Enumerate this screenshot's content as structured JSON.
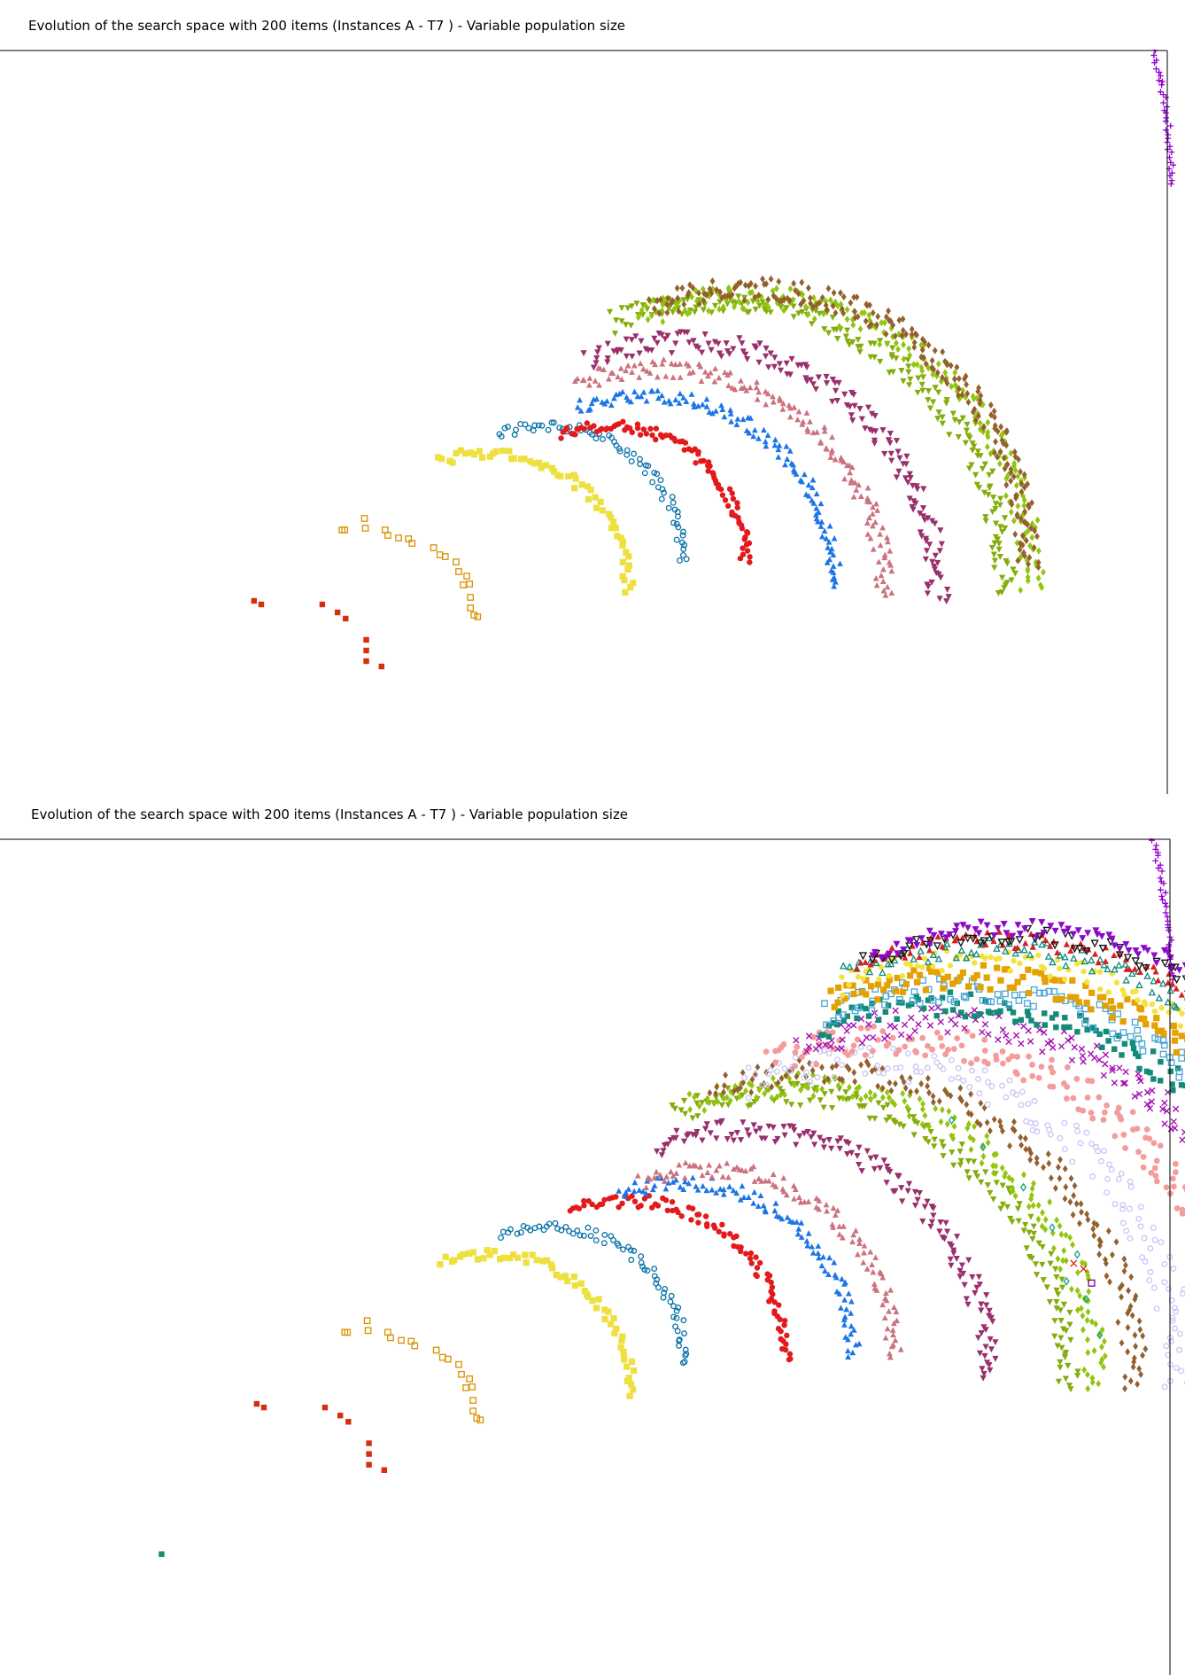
{
  "chart_data": [
    {
      "type": "scatter",
      "title": "Evolution of the search space with 200 items (Instances A - T7 ) - Variable population size",
      "xlabel": "",
      "ylabel": "",
      "grid": false,
      "legend": "none",
      "xlim": [
        0,
        1320
      ],
      "ylim": [
        0,
        840
      ],
      "series": [
        {
          "marker": "plus",
          "color": "#9400d3",
          "front": {
            "cx": 680,
            "cy": 685,
            "r": 625,
            "start": 90,
            "end": 0
          },
          "n": 220,
          "jitter": 3,
          "size": 3.4
        },
        {
          "marker": "square",
          "color": "#d62f0c",
          "points": [
            [
              283,
              218
            ],
            [
              291,
              214
            ],
            [
              359,
              214
            ],
            [
              376,
              205
            ],
            [
              385,
              198
            ],
            [
              408,
              174
            ],
            [
              408,
              162
            ],
            [
              408,
              150
            ],
            [
              425,
              144
            ]
          ],
          "size": 3.2
        },
        {
          "marker": "square-open",
          "color": "#d89100",
          "points": [
            [
              381,
              298
            ],
            [
              384,
              298
            ],
            [
              406,
              311
            ],
            [
              407,
              300
            ],
            [
              429,
              298
            ],
            [
              432,
              292
            ],
            [
              444,
              289
            ],
            [
              455,
              288
            ],
            [
              459,
              283
            ],
            [
              483,
              278
            ],
            [
              490,
              270
            ],
            [
              496,
              268
            ],
            [
              508,
              262
            ],
            [
              511,
              251
            ],
            [
              520,
              246
            ],
            [
              523,
              237
            ],
            [
              516,
              236
            ],
            [
              524,
              222
            ],
            [
              524,
              210
            ],
            [
              528,
              202
            ],
            [
              532,
              200
            ]
          ],
          "size": 3.2
        },
        {
          "marker": "square",
          "color": "#ede03f",
          "front": {
            "cx": 545,
            "cy": 230,
            "r": 155,
            "start": 112,
            "end": -2
          },
          "n": 60,
          "jitter": 6,
          "size": 3.6
        },
        {
          "marker": "circle-open",
          "color": "#0b72a9",
          "front": {
            "cx": 610,
            "cy": 265,
            "r": 150,
            "start": 112,
            "end": -2
          },
          "n": 70,
          "jitter": 6,
          "size": 2.8
        },
        {
          "marker": "circle",
          "color": "#e31a1c",
          "front": {
            "cx": 680,
            "cy": 265,
            "r": 150,
            "start": 112,
            "end": -2
          },
          "n": 95,
          "jitter": 6,
          "size": 3.2
        },
        {
          "marker": "triangle",
          "color": "#1c75e7",
          "front": {
            "cx": 720,
            "cy": 240,
            "r": 210,
            "start": 112,
            "end": -2
          },
          "n": 120,
          "jitter": 8,
          "size": 3.4
        },
        {
          "marker": "triangle",
          "color": "#cc727e",
          "front": {
            "cx": 735,
            "cy": 230,
            "r": 250,
            "start": 112,
            "end": -2
          },
          "n": 150,
          "jitter": 10,
          "size": 3.4
        },
        {
          "marker": "triangle-down",
          "color": "#992f6c",
          "front": {
            "cx": 760,
            "cy": 225,
            "r": 285,
            "start": 112,
            "end": -2
          },
          "n": 170,
          "jitter": 12,
          "size": 3.6
        },
        {
          "marker": "triangle-down",
          "color": "#83ad0c",
          "front": {
            "cx": 800,
            "cy": 235,
            "r": 320,
            "start": 112,
            "end": -2
          },
          "n": 190,
          "jitter": 13,
          "size": 3.6
        },
        {
          "marker": "diamond",
          "color": "#92c50d",
          "front": {
            "cx": 830,
            "cy": 240,
            "r": 320,
            "start": 112,
            "end": -2
          },
          "n": 210,
          "jitter": 14,
          "size": 3.4
        },
        {
          "marker": "diamond",
          "color": "#93602d",
          "front": {
            "cx": 840,
            "cy": 265,
            "r": 305,
            "start": 112,
            "end": -2
          },
          "n": 220,
          "jitter": 13,
          "size": 3.4
        }
      ]
    },
    {
      "type": "scatter",
      "title": "Evolution of the search space with 200 items (Instances A - T7 ) - Variable population size",
      "xlabel": "",
      "ylabel": "",
      "grid": false,
      "legend": "none",
      "xlim": [
        0,
        1320
      ],
      "ylim": [
        0,
        935
      ],
      "series": [
        {
          "marker": "plus",
          "color": "#9400d3",
          "front": {
            "cx": 680,
            "cy": 770,
            "r": 625,
            "start": 90,
            "end": 0
          },
          "n": 220,
          "jitter": 3,
          "size": 3.4
        },
        {
          "marker": "square",
          "color": "#128b77",
          "points": [
            [
              180,
              135
            ]
          ],
          "size": 3.2
        },
        {
          "marker": "square",
          "color": "#d62f0c",
          "points": [
            [
              286,
              303
            ],
            [
              294,
              299
            ],
            [
              362,
              299
            ],
            [
              379,
              290
            ],
            [
              388,
              283
            ],
            [
              411,
              259
            ],
            [
              411,
              247
            ],
            [
              411,
              235
            ],
            [
              428,
              229
            ]
          ],
          "size": 3.2
        },
        {
          "marker": "square-open",
          "color": "#d89100",
          "points": [
            [
              384,
              383
            ],
            [
              387,
              383
            ],
            [
              409,
              396
            ],
            [
              410,
              385
            ],
            [
              432,
              383
            ],
            [
              435,
              377
            ],
            [
              447,
              374
            ],
            [
              458,
              373
            ],
            [
              462,
              368
            ],
            [
              486,
              363
            ],
            [
              493,
              355
            ],
            [
              499,
              353
            ],
            [
              511,
              347
            ],
            [
              514,
              336
            ],
            [
              523,
              331
            ],
            [
              526,
              322
            ],
            [
              519,
              321
            ],
            [
              527,
              307
            ],
            [
              527,
              295
            ],
            [
              531,
              287
            ],
            [
              535,
              285
            ]
          ],
          "size": 3.2
        },
        {
          "marker": "square",
          "color": "#ede03f",
          "front": {
            "cx": 548,
            "cy": 315,
            "r": 155,
            "start": 112,
            "end": -2
          },
          "n": 60,
          "jitter": 6,
          "size": 3.6
        },
        {
          "marker": "circle-open",
          "color": "#0b72a9",
          "front": {
            "cx": 613,
            "cy": 350,
            "r": 150,
            "start": 112,
            "end": -2
          },
          "n": 70,
          "jitter": 6,
          "size": 2.8
        },
        {
          "marker": "circle",
          "color": "#e31a1c",
          "front": {
            "cx": 700,
            "cy": 355,
            "r": 175,
            "start": 112,
            "end": -2
          },
          "n": 95,
          "jitter": 7,
          "size": 3.2
        },
        {
          "marker": "triangle",
          "color": "#1c75e7",
          "front": {
            "cx": 760,
            "cy": 360,
            "r": 190,
            "start": 112,
            "end": -2
          },
          "n": 100,
          "jitter": 8,
          "size": 3.4
        },
        {
          "marker": "triangle",
          "color": "#cc727e",
          "front": {
            "cx": 790,
            "cy": 360,
            "r": 205,
            "start": 112,
            "end": -2
          },
          "n": 110,
          "jitter": 9,
          "size": 3.4
        },
        {
          "marker": "triangle-down",
          "color": "#992f6c",
          "front": {
            "cx": 830,
            "cy": 340,
            "r": 270,
            "start": 112,
            "end": -2
          },
          "n": 150,
          "jitter": 12,
          "size": 3.6
        },
        {
          "marker": "triangle-down",
          "color": "#83ad0c",
          "front": {
            "cx": 870,
            "cy": 330,
            "r": 320,
            "start": 112,
            "end": -2
          },
          "n": 170,
          "jitter": 13,
          "size": 3.6
        },
        {
          "marker": "diamond",
          "color": "#92c50d",
          "front": {
            "cx": 890,
            "cy": 330,
            "r": 330,
            "start": 112,
            "end": -2
          },
          "n": 170,
          "jitter": 14,
          "size": 3.4
        },
        {
          "marker": "diamond",
          "color": "#93602d",
          "front": {
            "cx": 920,
            "cy": 330,
            "r": 345,
            "start": 112,
            "end": -2
          },
          "n": 170,
          "jitter": 14,
          "size": 3.4
        },
        {
          "marker": "circle-open",
          "color": "#c9c6f5",
          "front": {
            "cx": 960,
            "cy": 330,
            "r": 355,
            "start": 112,
            "end": -2
          },
          "n": 150,
          "jitter": 18,
          "size": 2.8
        },
        {
          "marker": "circle",
          "color": "#f49c9c",
          "front": {
            "cx": 1000,
            "cy": 330,
            "r": 380,
            "start": 112,
            "end": -2
          },
          "n": 190,
          "jitter": 18,
          "size": 3.4
        },
        {
          "marker": "x",
          "color": "#9f07ae",
          "front": {
            "cx": 1040,
            "cy": 330,
            "r": 400,
            "start": 112,
            "end": -2
          },
          "n": 200,
          "jitter": 16,
          "size": 3.2
        },
        {
          "marker": "square",
          "color": "#128b77",
          "front": {
            "cx": 1060,
            "cy": 345,
            "r": 405,
            "start": 112,
            "end": -2
          },
          "n": 170,
          "jitter": 14,
          "size": 3.2
        },
        {
          "marker": "square-open",
          "color": "#47a5d4",
          "front": {
            "cx": 1070,
            "cy": 355,
            "r": 410,
            "start": 112,
            "end": -2
          },
          "n": 170,
          "jitter": 14,
          "size": 3.2
        },
        {
          "marker": "square",
          "color": "#e4a100",
          "front": {
            "cx": 1080,
            "cy": 365,
            "r": 415,
            "start": 112,
            "end": -2
          },
          "n": 190,
          "jitter": 14,
          "size": 3.6
        },
        {
          "marker": "circle",
          "color": "#f6e23e",
          "front": {
            "cx": 1090,
            "cy": 380,
            "r": 420,
            "start": 112,
            "end": -2
          },
          "n": 150,
          "jitter": 12,
          "size": 3.2
        },
        {
          "marker": "triangle-open",
          "color": "#0e8c7a",
          "front": {
            "cx": 1100,
            "cy": 390,
            "r": 422,
            "start": 112,
            "end": -2
          },
          "n": 150,
          "jitter": 11,
          "size": 3.2
        },
        {
          "marker": "triangle",
          "color": "#d91f1f",
          "front": {
            "cx": 1110,
            "cy": 395,
            "r": 425,
            "start": 112,
            "end": -2
          },
          "n": 150,
          "jitter": 10,
          "size": 3.6
        },
        {
          "marker": "triangle-down-open",
          "color": "#111111",
          "front": {
            "cx": 1120,
            "cy": 400,
            "r": 428,
            "start": 112,
            "end": -2
          },
          "n": 110,
          "jitter": 9,
          "size": 3.6
        },
        {
          "marker": "triangle-down",
          "color": "#8c0ac8",
          "front": {
            "cx": 1130,
            "cy": 405,
            "r": 430,
            "start": 112,
            "end": -2
          },
          "n": 160,
          "jitter": 9,
          "size": 4
        },
        {
          "marker": "diamond-open",
          "color": "#11a579",
          "points": [
            [
              1210,
              420
            ],
            [
              1225,
              380
            ],
            [
              1188,
              440
            ],
            [
              1200,
              470
            ],
            [
              1172,
              500
            ],
            [
              1140,
              545
            ],
            [
              1095,
              590
            ],
            [
              1060,
              620
            ]
          ],
          "size": 3.2
        },
        {
          "marker": "x",
          "color": "#e31a1c",
          "points": [
            [
              1207,
              454
            ],
            [
              1196,
              460
            ]
          ],
          "size": 3.6
        },
        {
          "marker": "square-open",
          "color": "#7a0a8b",
          "points": [
            [
              1216,
              438
            ]
          ],
          "size": 3.4
        }
      ]
    }
  ]
}
